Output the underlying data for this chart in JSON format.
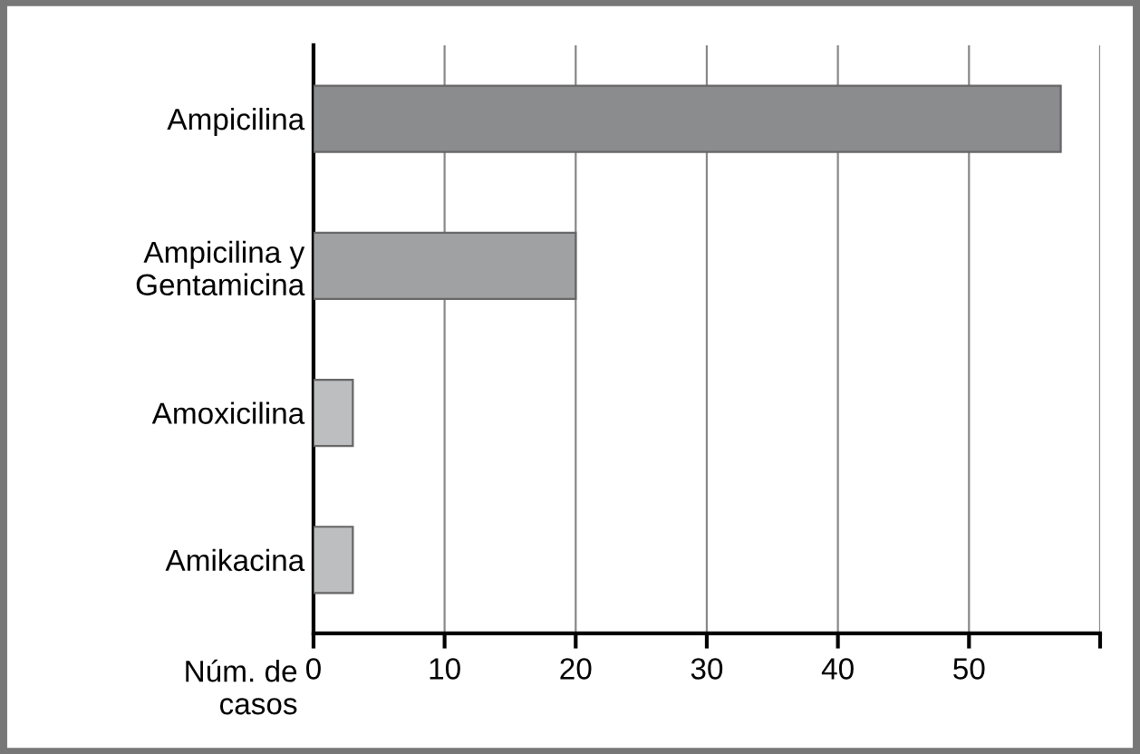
{
  "chart_data": {
    "type": "bar",
    "orientation": "horizontal",
    "categories": [
      "Ampicilina",
      "Ampicilina y\nGentamicina",
      "Amoxicilina",
      "Amikacina"
    ],
    "values": [
      57,
      20,
      3,
      3
    ],
    "colors": [
      "#8b8c8e",
      "#a0a1a3",
      "#bdbebf",
      "#bdbebf"
    ],
    "xlabel": "Núm. de\ncasos",
    "xlim": [
      0,
      60
    ],
    "xticks": [
      0,
      10,
      20,
      30,
      40,
      50,
      {
        "value": 60,
        "label": null
      }
    ],
    "grid": "x"
  }
}
